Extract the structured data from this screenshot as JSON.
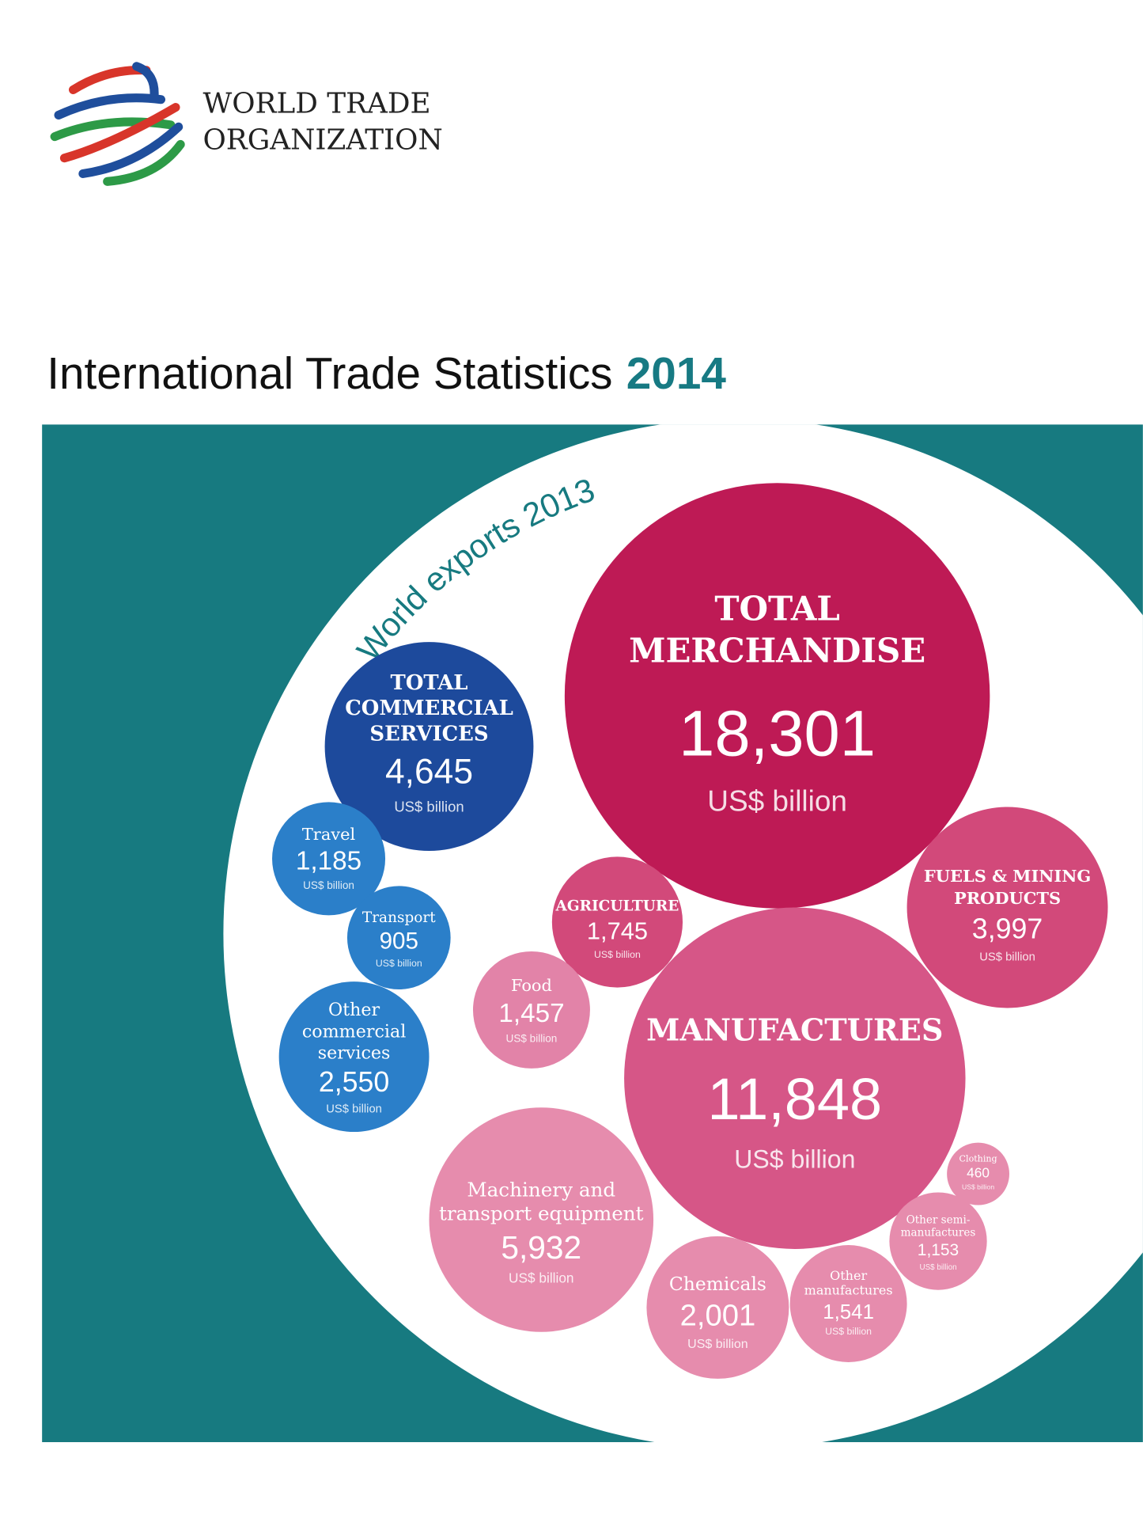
{
  "header": {
    "org_line1": "WORLD TRADE",
    "org_line2": "ORGANIZATION"
  },
  "title": "International Trade Statistics",
  "title_year": "2014",
  "subtitle": "World exports 2013",
  "bubbles": [
    {
      "label_lines": [
        "TOTAL",
        "MERCHANDISE"
      ],
      "value": "18,301",
      "unit": "US$ billion"
    },
    {
      "label_lines": [
        "TOTAL",
        "COMMERCIAL",
        "SERVICES"
      ],
      "value": "4,645",
      "unit": "US$ billion"
    },
    {
      "label_lines": [
        "Travel"
      ],
      "value": "1,185",
      "unit": "US$ billion"
    },
    {
      "label_lines": [
        "Transport"
      ],
      "value": "905",
      "unit": "US$ billion"
    },
    {
      "label_lines": [
        "Other",
        "commercial",
        "services"
      ],
      "value": "2,550",
      "unit": "US$ billion"
    },
    {
      "label_lines": [
        "FUELS & MINING",
        "PRODUCTS"
      ],
      "value": "3,997",
      "unit": "US$ billion"
    },
    {
      "label_lines": [
        "AGRICULTURE"
      ],
      "value": "1,745",
      "unit": "US$ billion"
    },
    {
      "label_lines": [
        "MANUFACTURES"
      ],
      "value": "11,848",
      "unit": "US$ billion"
    },
    {
      "label_lines": [
        "Food"
      ],
      "value": "1,457",
      "unit": "US$ billion"
    },
    {
      "label_lines": [
        "Machinery and",
        "transport equipment"
      ],
      "value": "5,932",
      "unit": "US$ billion"
    },
    {
      "label_lines": [
        "Chemicals"
      ],
      "value": "2,001",
      "unit": "US$ billion"
    },
    {
      "label_lines": [
        "Other",
        "manufactures"
      ],
      "value": "1,541",
      "unit": "US$ billion"
    },
    {
      "label_lines": [
        "Other semi-",
        "manufactures"
      ],
      "value": "1,153",
      "unit": "US$ billion"
    },
    {
      "label_lines": [
        "Clothing"
      ],
      "value": "460",
      "unit": "US$ billion"
    }
  ]
}
